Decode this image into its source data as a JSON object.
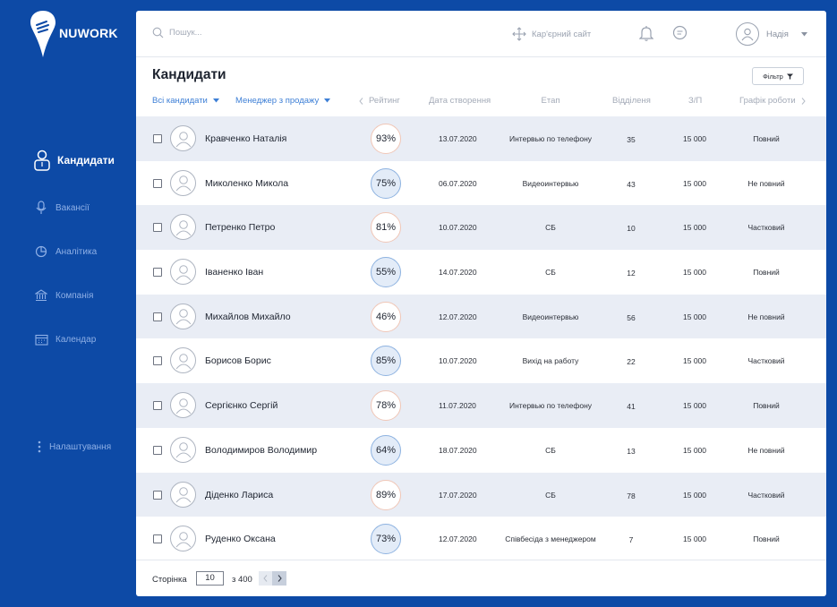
{
  "app": {
    "logo_text": "NUWORK"
  },
  "sidebar": {
    "items": [
      {
        "label": "Кандидати",
        "icon": "user-icon",
        "active": true
      },
      {
        "label": "Вакансії",
        "icon": "microphone-icon",
        "active": false
      },
      {
        "label": "Аналітика",
        "icon": "pie-chart-icon",
        "active": false
      },
      {
        "label": "Компанія",
        "icon": "bank-icon",
        "active": false
      },
      {
        "label": "Календар",
        "icon": "calendar-icon",
        "active": false
      },
      {
        "label": "Налаштування",
        "icon": "kebab-icon",
        "active": false
      }
    ]
  },
  "topbar": {
    "search_placeholder": "Пошук...",
    "career_site_label": "Кар'єрний сайт",
    "user_name": "Надія"
  },
  "page": {
    "title": "Кандидати",
    "filter_label": "Фільтр"
  },
  "columns": {
    "all_candidates": "Всі кандидати",
    "sales_manager": "Менеджер з продажу",
    "rating": "Рейтинг",
    "created": "Дата створення",
    "stage": "Етап",
    "department": "Відділеня",
    "salary": "З/П",
    "schedule": "Графік роботи"
  },
  "candidates": [
    {
      "name": "Кравченко Наталія",
      "rating": "93%",
      "date": "13.07.2020",
      "stage": "Интервью по телефону",
      "dept": "35",
      "salary": "15 000",
      "schedule": "Повний"
    },
    {
      "name": "Миколенко Микола",
      "rating": "75%",
      "date": "06.07.2020",
      "stage": "Видеоинтервью",
      "dept": "43",
      "salary": "15 000",
      "schedule": "Не повний"
    },
    {
      "name": "Петренко Петро",
      "rating": "81%",
      "date": "10.07.2020",
      "stage": "СБ",
      "dept": "10",
      "salary": "15 000",
      "schedule": "Частковий"
    },
    {
      "name": "Іваненко Іван",
      "rating": "55%",
      "date": "14.07.2020",
      "stage": "СБ",
      "dept": "12",
      "salary": "15 000",
      "schedule": "Повний"
    },
    {
      "name": "Михайлов Михайло",
      "rating": "46%",
      "date": "12.07.2020",
      "stage": "Видеоинтервью",
      "dept": "56",
      "salary": "15 000",
      "schedule": "Не повний"
    },
    {
      "name": "Борисов Борис",
      "rating": "85%",
      "date": "10.07.2020",
      "stage": "Вихід на работу",
      "dept": "22",
      "salary": "15 000",
      "schedule": "Частковий"
    },
    {
      "name": "Сергієнко Сергій",
      "rating": "78%",
      "date": "11.07.2020",
      "stage": "Интервью по телефону",
      "dept": "41",
      "salary": "15 000",
      "schedule": "Повний"
    },
    {
      "name": "Володимиров Володимир",
      "rating": "64%",
      "date": "18.07.2020",
      "stage": "СБ",
      "dept": "13",
      "salary": "15 000",
      "schedule": "Не повний"
    },
    {
      "name": "Діденко Лариса",
      "rating": "89%",
      "date": "17.07.2020",
      "stage": "СБ",
      "dept": "78",
      "salary": "15 000",
      "schedule": "Частковий"
    },
    {
      "name": "Руденко Оксана",
      "rating": "73%",
      "date": "12.07.2020",
      "stage": "Співбесіда з менеджером",
      "dept": "7",
      "salary": "15 000",
      "schedule": "Повний"
    }
  ],
  "pagination": {
    "label": "Сторінка",
    "current": "10",
    "of_total": "з 400"
  },
  "colors": {
    "brand_blue": "#0d4aa6",
    "accent_link": "#3d7fd6",
    "row_alt": "#e9edf5"
  }
}
